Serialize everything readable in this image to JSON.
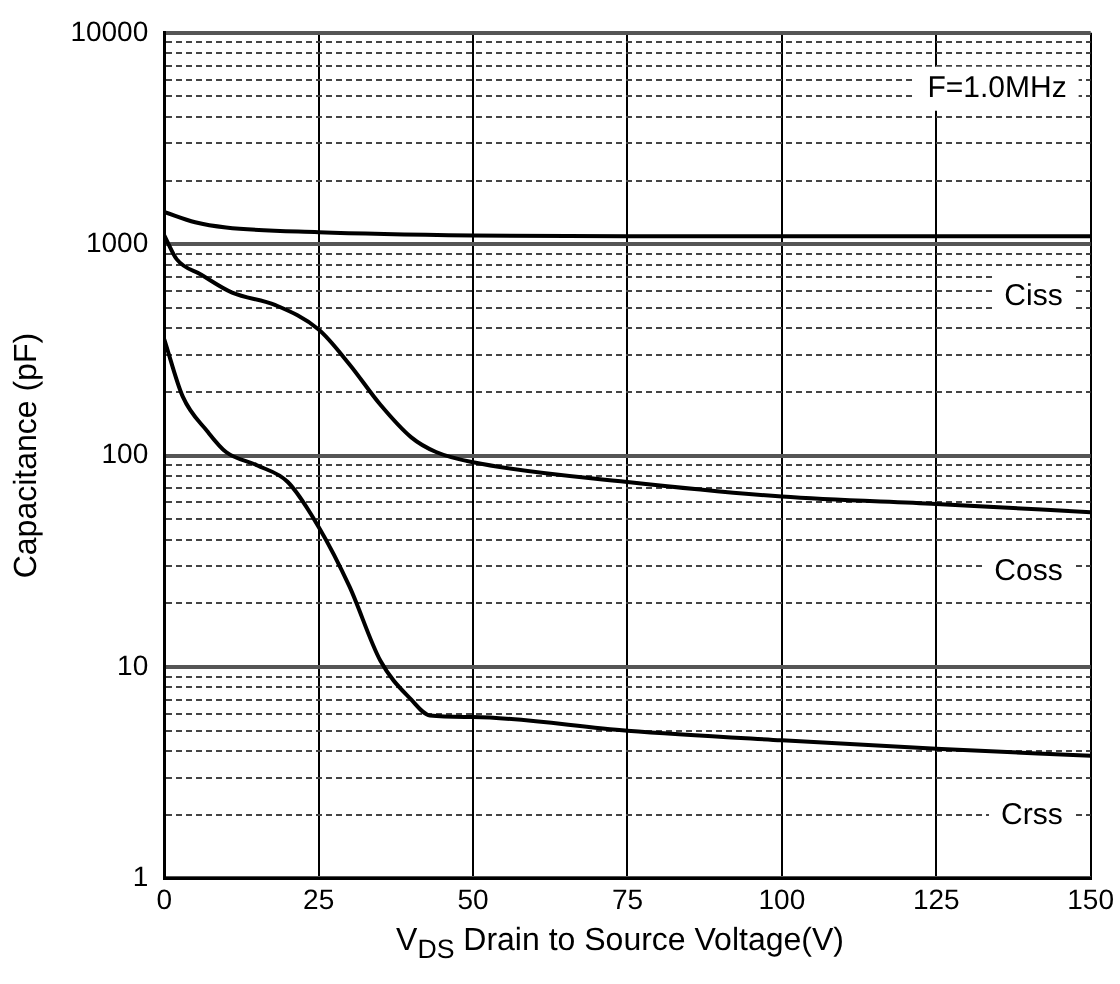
{
  "chart_data": {
    "type": "line",
    "xlabel": "V$_{DS}$ Drain to Source Voltage(V)",
    "ylabel": "Capacitance (pF)",
    "annotations": [
      "F=1.0MHz"
    ],
    "xlim": [
      0,
      150
    ],
    "xticks": [
      0,
      25,
      50,
      75,
      100,
      125,
      150
    ],
    "ylim": [
      1,
      10000
    ],
    "log": "y",
    "yticks": [
      1,
      {
        "value": 2,
        "label": null
      },
      {
        "value": 3,
        "label": null
      },
      {
        "value": 4,
        "label": null
      },
      {
        "value": 5,
        "label": null
      },
      {
        "value": 6,
        "label": null
      },
      {
        "value": 7,
        "label": null
      },
      {
        "value": 8,
        "label": null
      },
      {
        "value": 9,
        "label": null
      },
      10,
      {
        "value": 20,
        "label": null
      },
      {
        "value": 30,
        "label": null
      },
      {
        "value": 40,
        "label": null
      },
      {
        "value": 50,
        "label": null
      },
      {
        "value": 60,
        "label": null
      },
      {
        "value": 70,
        "label": null
      },
      {
        "value": 80,
        "label": null
      },
      {
        "value": 90,
        "label": null
      },
      100,
      {
        "value": 200,
        "label": null
      },
      {
        "value": 300,
        "label": null
      },
      {
        "value": 400,
        "label": null
      },
      {
        "value": 500,
        "label": null
      },
      {
        "value": 600,
        "label": null
      },
      {
        "value": 700,
        "label": null
      },
      {
        "value": 800,
        "label": null
      },
      {
        "value": 900,
        "label": null
      },
      1000,
      {
        "value": 2000,
        "label": null
      },
      {
        "value": 3000,
        "label": null
      },
      {
        "value": 4000,
        "label": null
      },
      {
        "value": 5000,
        "label": null
      },
      {
        "value": 6000,
        "label": null
      },
      {
        "value": 7000,
        "label": null
      },
      {
        "value": 8000,
        "label": null
      },
      {
        "value": 9000,
        "label": null
      },
      10000
    ],
    "grid": true,
    "legend": false,
    "marker": "none",
    "line_style": "solid",
    "series": [
      {
        "name": "Ciss",
        "color": "#000000",
        "x": [
          0,
          5,
          10,
          25,
          50,
          75,
          100,
          125,
          150
        ],
        "values": [
          1420,
          1270,
          1200,
          1140,
          1100,
          1090,
          1090,
          1090,
          1090
        ]
      },
      {
        "name": "Coss",
        "color": "#000000",
        "x": [
          0,
          2,
          6,
          11,
          18,
          25,
          30,
          35,
          40,
          44,
          50,
          75,
          100,
          125,
          150
        ],
        "values": [
          1100,
          850,
          717,
          590,
          515,
          395,
          270,
          174,
          122,
          104,
          93,
          75,
          64,
          59,
          54
        ]
      },
      {
        "name": "Crss",
        "color": "#000000",
        "x": [
          0,
          3,
          7,
          10,
          15,
          20,
          25,
          30,
          35,
          40,
          43,
          50,
          75,
          100,
          125,
          150
        ],
        "values": [
          355,
          190,
          130,
          104,
          90,
          75,
          46,
          24,
          10.7,
          7,
          5.9,
          5.8,
          5.0,
          4.5,
          4.1,
          3.8
        ]
      }
    ]
  }
}
